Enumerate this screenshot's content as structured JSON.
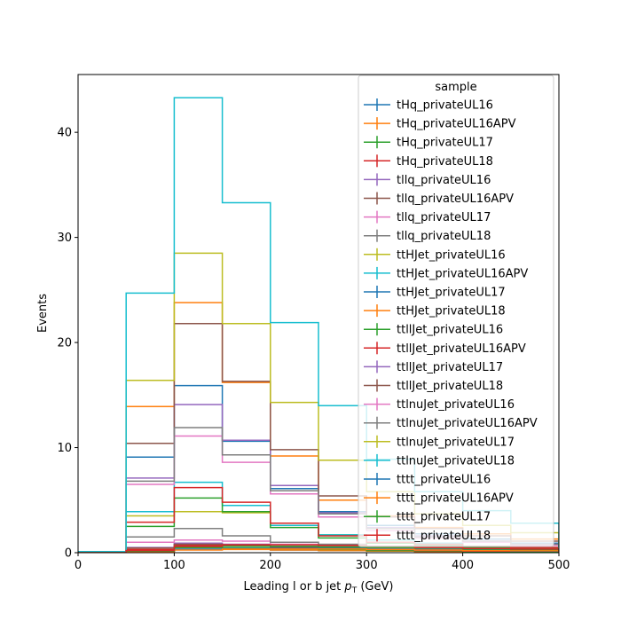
{
  "chart_data": {
    "type": "histogram-step",
    "xlabel": "Leading l or b jet $p_T$ (GeV)",
    "xlabel_main": "Leading l or b jet ",
    "xlabel_sym": "p",
    "xlabel_sub": "T",
    "xlabel_unit": " (GeV)",
    "ylabel": "Events",
    "xlim": [
      0,
      500
    ],
    "ylim": [
      0,
      45.5
    ],
    "xticks": [
      0,
      100,
      200,
      300,
      400,
      500
    ],
    "yticks": [
      0,
      10,
      20,
      30,
      40
    ],
    "grid": false,
    "legend_title": "sample",
    "legend_position": "top-right",
    "bin_edges": [
      0,
      50,
      100,
      150,
      200,
      250,
      300,
      350,
      400,
      450,
      500
    ],
    "series": [
      {
        "name": "tHq_privateUL16",
        "color": "#1f77b4",
        "values": [
          0.05,
          0.15,
          0.35,
          0.35,
          0.25,
          0.2,
          0.15,
          0.1,
          0.1,
          0.1
        ]
      },
      {
        "name": "tHq_privateUL16APV",
        "color": "#ff7f0e",
        "values": [
          0.05,
          0.15,
          0.3,
          0.3,
          0.25,
          0.2,
          0.15,
          0.1,
          0.1,
          0.1
        ]
      },
      {
        "name": "tHq_privateUL17",
        "color": "#2ca02c",
        "values": [
          0.05,
          0.2,
          0.5,
          0.45,
          0.35,
          0.3,
          0.2,
          0.15,
          0.1,
          0.1
        ]
      },
      {
        "name": "tHq_privateUL18",
        "color": "#d62728",
        "values": [
          0.05,
          0.3,
          0.7,
          0.7,
          0.5,
          0.4,
          0.3,
          0.2,
          0.15,
          0.15
        ]
      },
      {
        "name": "tllq_privateUL16",
        "color": "#9467bd",
        "values": [
          0.05,
          0.5,
          0.9,
          0.8,
          0.6,
          0.5,
          0.35,
          0.25,
          0.2,
          0.15
        ]
      },
      {
        "name": "tllq_privateUL16APV",
        "color": "#8c564b",
        "values": [
          0.05,
          0.45,
          0.8,
          0.75,
          0.55,
          0.45,
          0.3,
          0.25,
          0.2,
          0.15
        ]
      },
      {
        "name": "tllq_privateUL17",
        "color": "#e377c2",
        "values": [
          0.05,
          1.0,
          1.2,
          1.1,
          0.8,
          0.6,
          0.45,
          0.35,
          0.25,
          0.2
        ]
      },
      {
        "name": "tllq_privateUL18",
        "color": "#7f7f7f",
        "values": [
          0.05,
          1.5,
          2.3,
          1.6,
          1.0,
          0.8,
          0.6,
          0.45,
          0.3,
          0.25
        ]
      },
      {
        "name": "ttHJet_privateUL16",
        "color": "#bcbd22",
        "values": [
          0.1,
          3.5,
          3.9,
          3.8,
          2.6,
          1.7,
          1.2,
          0.9,
          0.6,
          0.5
        ]
      },
      {
        "name": "ttHJet_privateUL16APV",
        "color": "#17becf",
        "values": [
          0.1,
          3.9,
          6.7,
          4.5,
          2.6,
          1.7,
          1.2,
          0.9,
          0.6,
          0.5
        ]
      },
      {
        "name": "ttHJet_privateUL17",
        "color": "#1f77b4",
        "values": [
          0.1,
          9.1,
          15.9,
          10.6,
          6.1,
          3.9,
          2.6,
          1.8,
          1.3,
          0.9
        ]
      },
      {
        "name": "ttHJet_privateUL18",
        "color": "#ff7f0e",
        "values": [
          0.1,
          13.9,
          23.8,
          16.2,
          9.2,
          5.0,
          3.5,
          2.4,
          1.8,
          1.3
        ]
      },
      {
        "name": "ttllJet_privateUL16",
        "color": "#2ca02c",
        "values": [
          0.05,
          2.5,
          5.2,
          3.9,
          2.4,
          1.4,
          0.9,
          0.7,
          0.5,
          0.4
        ]
      },
      {
        "name": "ttllJet_privateUL16APV",
        "color": "#d62728",
        "values": [
          0.05,
          2.9,
          6.2,
          4.8,
          2.8,
          1.6,
          1.0,
          0.8,
          0.6,
          0.5
        ]
      },
      {
        "name": "ttllJet_privateUL17",
        "color": "#9467bd",
        "values": [
          0.1,
          7.1,
          14.1,
          10.7,
          6.4,
          3.8,
          2.4,
          1.6,
          1.1,
          0.8
        ]
      },
      {
        "name": "ttllJet_privateUL18",
        "color": "#8c564b",
        "values": [
          0.1,
          10.4,
          21.8,
          16.3,
          9.8,
          5.4,
          3.4,
          2.3,
          1.6,
          1.1
        ]
      },
      {
        "name": "ttlnuJet_privateUL16",
        "color": "#e377c2",
        "values": [
          0.05,
          6.5,
          11.1,
          8.6,
          5.6,
          3.4,
          2.1,
          1.4,
          1.0,
          0.7
        ]
      },
      {
        "name": "ttlnuJet_privateUL16APV",
        "color": "#7f7f7f",
        "values": [
          0.05,
          6.8,
          11.9,
          9.3,
          5.9,
          3.7,
          2.3,
          1.5,
          1.1,
          0.8
        ]
      },
      {
        "name": "ttlnuJet_privateUL17",
        "color": "#bcbd22",
        "values": [
          0.1,
          16.4,
          28.5,
          21.8,
          14.3,
          8.8,
          5.8,
          3.7,
          2.6,
          1.9
        ]
      },
      {
        "name": "ttlnuJet_privateUL18",
        "color": "#17becf",
        "values": [
          0.1,
          24.7,
          43.3,
          33.3,
          21.9,
          14.0,
          8.9,
          5.8,
          4.0,
          2.8
        ]
      },
      {
        "name": "tttt_privateUL16",
        "color": "#1f77b4",
        "values": [
          0.0,
          0.1,
          0.3,
          0.4,
          0.4,
          0.4,
          0.35,
          0.3,
          0.25,
          0.2
        ]
      },
      {
        "name": "tttt_privateUL16APV",
        "color": "#ff7f0e",
        "values": [
          0.0,
          0.1,
          0.25,
          0.35,
          0.35,
          0.35,
          0.3,
          0.25,
          0.2,
          0.2
        ]
      },
      {
        "name": "tttt_privateUL17",
        "color": "#2ca02c",
        "values": [
          0.0,
          0.15,
          0.5,
          0.6,
          0.6,
          0.55,
          0.5,
          0.45,
          0.35,
          0.3
        ]
      },
      {
        "name": "tttt_privateUL18",
        "color": "#d62728",
        "values": [
          0.0,
          0.2,
          0.6,
          0.75,
          0.75,
          0.7,
          0.6,
          0.5,
          0.4,
          0.35
        ]
      }
    ]
  }
}
